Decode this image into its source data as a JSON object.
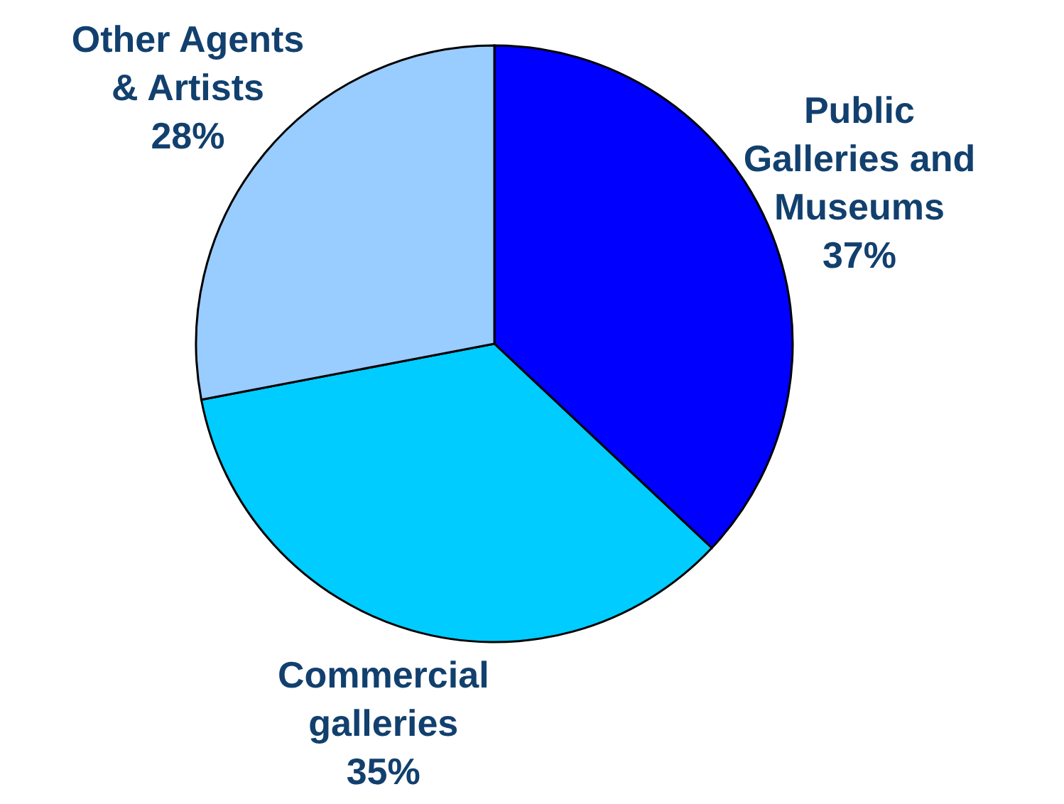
{
  "chart_data": {
    "type": "pie",
    "categories": [
      "Public Galleries and Museums",
      "Commercial galleries",
      "Other Agents & Artists"
    ],
    "values": [
      37,
      35,
      28
    ],
    "value_labels": [
      "37%",
      "35%",
      "28%"
    ],
    "colors": [
      "#0000ff",
      "#00ccff",
      "#99ccff"
    ]
  }
}
